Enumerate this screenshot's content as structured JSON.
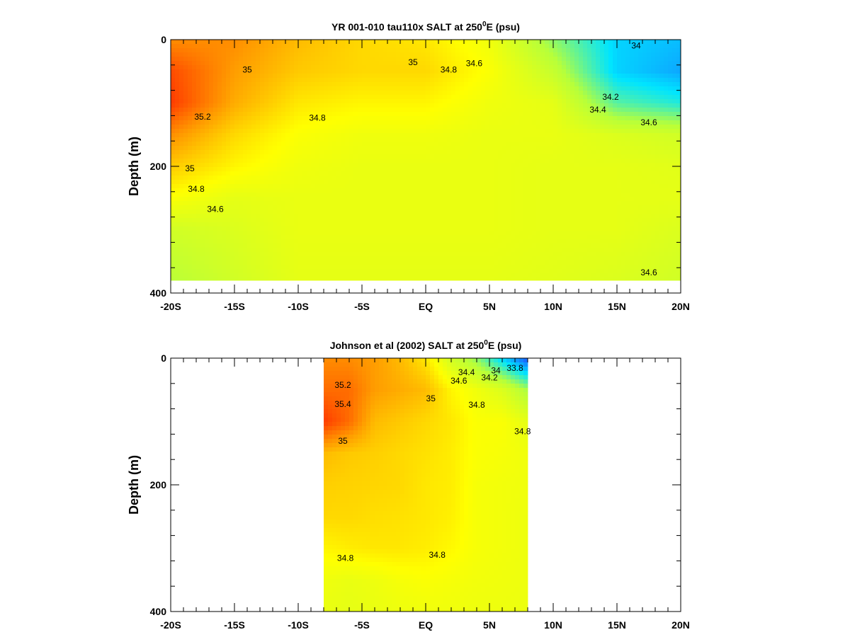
{
  "chart_data": [
    {
      "type": "heatmap",
      "title": "YR 001-010 tau110x SALT at 250",
      "title_superscript": "0",
      "title_tail": "E (psu)",
      "ylabel": "Depth (m)",
      "xlabel": "",
      "x_ticks": [
        "-20S",
        "-15S",
        "-10S",
        "-5S",
        "EQ",
        "5N",
        "10N",
        "15N",
        "20N"
      ],
      "y_ticks": [
        "0",
        "200",
        "400"
      ],
      "xlim": [
        -20,
        20
      ],
      "ylim": [
        400,
        0
      ],
      "data_extent": {
        "lat": [
          -20,
          20
        ],
        "depth": [
          0,
          380
        ]
      },
      "colormap": [
        "#1f4fff",
        "#00e5ff",
        "#b7ff3a",
        "#ffff00",
        "#ff9a00",
        "#ff2a00"
      ],
      "salinity_range": [
        33.8,
        35.5
      ],
      "field_grid": {
        "lat": [
          -20,
          -15,
          -10,
          -5,
          0,
          5,
          10,
          15,
          20
        ],
        "depth": [
          0,
          50,
          100,
          150,
          200,
          250,
          300,
          380
        ],
        "salt": [
          [
            35.2,
            35.2,
            35.05,
            34.95,
            34.9,
            34.75,
            34.4,
            34.1,
            34.05
          ],
          [
            35.4,
            35.15,
            35.0,
            34.95,
            34.95,
            34.8,
            34.55,
            34.1,
            34.0
          ],
          [
            35.45,
            35.1,
            34.9,
            34.85,
            34.85,
            34.75,
            34.7,
            34.3,
            34.2
          ],
          [
            35.2,
            34.95,
            34.8,
            34.75,
            34.75,
            34.72,
            34.72,
            34.65,
            34.6
          ],
          [
            35.0,
            34.85,
            34.75,
            34.72,
            34.72,
            34.72,
            34.7,
            34.7,
            34.68
          ],
          [
            34.8,
            34.7,
            34.72,
            34.72,
            34.72,
            34.72,
            34.7,
            34.7,
            34.7
          ],
          [
            34.6,
            34.65,
            34.72,
            34.72,
            34.72,
            34.72,
            34.7,
            34.7,
            34.65
          ],
          [
            34.5,
            34.6,
            34.7,
            34.7,
            34.7,
            34.7,
            34.68,
            34.65,
            34.6
          ]
        ]
      },
      "contour_labels": [
        {
          "text": "35",
          "lat": -14.0,
          "depth": 52
        },
        {
          "text": "35.2",
          "lat": -17.5,
          "depth": 126
        },
        {
          "text": "34.8",
          "lat": -8.5,
          "depth": 128
        },
        {
          "text": "35",
          "lat": -1.0,
          "depth": 40
        },
        {
          "text": "34.8",
          "lat": 1.8,
          "depth": 52
        },
        {
          "text": "34.6",
          "lat": 3.8,
          "depth": 42
        },
        {
          "text": "34",
          "lat": 16.5,
          "depth": 14
        },
        {
          "text": "34.2",
          "lat": 14.5,
          "depth": 95
        },
        {
          "text": "34.4",
          "lat": 13.5,
          "depth": 115
        },
        {
          "text": "34.6",
          "lat": 17.5,
          "depth": 135
        },
        {
          "text": "35",
          "lat": -18.5,
          "depth": 208
        },
        {
          "text": "34.8",
          "lat": -18.0,
          "depth": 240
        },
        {
          "text": "34.6",
          "lat": -16.5,
          "depth": 272
        },
        {
          "text": "34.6",
          "lat": 17.5,
          "depth": 372
        }
      ]
    },
    {
      "type": "heatmap",
      "title": "Johnson et al (2002) SALT at 250",
      "title_superscript": "0",
      "title_tail": "E (psu)",
      "ylabel": "Depth (m)",
      "xlabel": "",
      "x_ticks": [
        "-20S",
        "-15S",
        "-10S",
        "-5S",
        "EQ",
        "5N",
        "10N",
        "15N",
        "20N"
      ],
      "y_ticks": [
        "0",
        "200",
        "400"
      ],
      "xlim": [
        -20,
        20
      ],
      "ylim": [
        400,
        0
      ],
      "data_extent": {
        "lat": [
          -8,
          8
        ],
        "depth": [
          0,
          400
        ]
      },
      "colormap": [
        "#1f4fff",
        "#00e5ff",
        "#b7ff3a",
        "#ffff00",
        "#ff9a00",
        "#ff2a00"
      ],
      "salinity_range": [
        33.8,
        35.5
      ],
      "field_grid": {
        "lat": [
          -8,
          -6,
          -4,
          -2,
          0,
          2,
          4,
          6,
          8
        ],
        "depth": [
          0,
          50,
          100,
          150,
          200,
          250,
          300,
          350,
          400
        ],
        "salt": [
          [
            35.2,
            35.2,
            35.15,
            35.05,
            34.9,
            34.6,
            34.4,
            34.1,
            33.8
          ],
          [
            35.3,
            35.3,
            35.15,
            35.1,
            35.05,
            34.85,
            34.75,
            34.65,
            34.45
          ],
          [
            35.45,
            35.3,
            35.05,
            35.0,
            34.95,
            34.9,
            34.8,
            34.8,
            34.7
          ],
          [
            35.05,
            35.0,
            34.98,
            34.95,
            34.92,
            34.88,
            34.8,
            34.78,
            34.75
          ],
          [
            34.98,
            34.97,
            34.96,
            34.95,
            34.9,
            34.88,
            34.78,
            34.76,
            34.75
          ],
          [
            34.95,
            34.95,
            34.93,
            34.92,
            34.9,
            34.87,
            34.78,
            34.76,
            34.74
          ],
          [
            34.85,
            34.88,
            34.9,
            34.9,
            34.88,
            34.84,
            34.78,
            34.76,
            34.74
          ],
          [
            34.75,
            34.72,
            34.74,
            34.78,
            34.8,
            34.78,
            34.76,
            34.75,
            34.74
          ],
          [
            34.72,
            34.7,
            34.72,
            34.74,
            34.75,
            34.75,
            34.74,
            34.74,
            34.73
          ]
        ]
      },
      "contour_labels": [
        {
          "text": "35.2",
          "lat": -6.5,
          "depth": 47
        },
        {
          "text": "35.4",
          "lat": -6.5,
          "depth": 77
        },
        {
          "text": "35",
          "lat": -6.5,
          "depth": 135
        },
        {
          "text": "35",
          "lat": 0.4,
          "depth": 68
        },
        {
          "text": "34.8",
          "lat": 4.0,
          "depth": 78
        },
        {
          "text": "34.4",
          "lat": 3.2,
          "depth": 27
        },
        {
          "text": "34.6",
          "lat": 2.6,
          "depth": 40
        },
        {
          "text": "34.2",
          "lat": 5.0,
          "depth": 35
        },
        {
          "text": "34",
          "lat": 5.5,
          "depth": 24
        },
        {
          "text": "33.8",
          "lat": 7.0,
          "depth": 20
        },
        {
          "text": "34.8",
          "lat": 7.6,
          "depth": 120
        },
        {
          "text": "34.8",
          "lat": -6.3,
          "depth": 320
        },
        {
          "text": "34.8",
          "lat": 0.9,
          "depth": 315
        }
      ]
    }
  ]
}
